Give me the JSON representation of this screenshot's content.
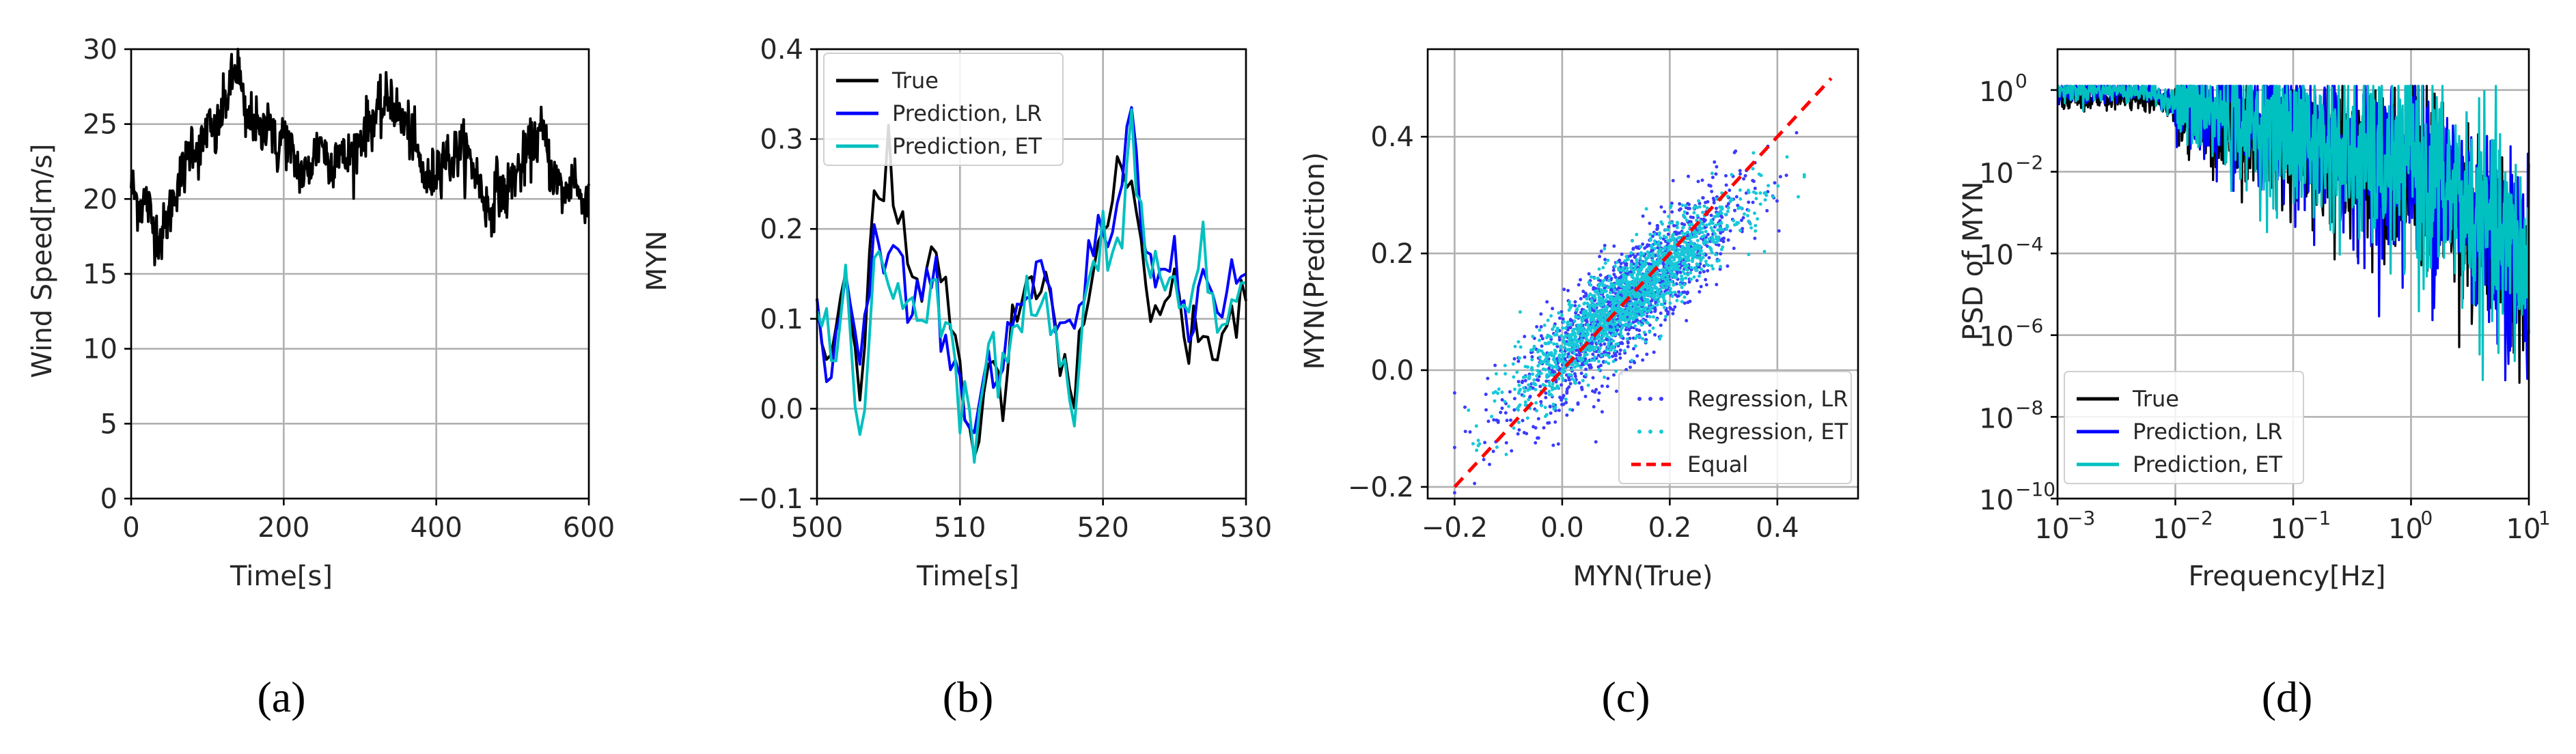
{
  "chart_data": [
    {
      "panel": "a",
      "type": "line",
      "caption": "(a)",
      "xlabel": "Time[s]",
      "ylabel": "Wind Speed[m/s]",
      "xlim": [
        0,
        600
      ],
      "ylim": [
        0,
        30
      ],
      "xticks": [
        "0",
        "200",
        "400",
        "600"
      ],
      "yticks": [
        "0",
        "5",
        "10",
        "15",
        "20",
        "25",
        "30"
      ],
      "grid": true,
      "series": [
        {
          "color": "#000000",
          "x": [
            0,
            10,
            20,
            30,
            40,
            50,
            60,
            70,
            80,
            90,
            100,
            110,
            120,
            130,
            140,
            150,
            160,
            170,
            180,
            190,
            200,
            210,
            220,
            230,
            240,
            250,
            260,
            270,
            280,
            290,
            300,
            310,
            320,
            330,
            340,
            350,
            360,
            370,
            380,
            390,
            400,
            410,
            420,
            430,
            440,
            450,
            460,
            470,
            480,
            490,
            500,
            510,
            520,
            530,
            540,
            550,
            560,
            570,
            580,
            590,
            600
          ],
          "values": [
            21,
            19.5,
            20,
            18,
            17.5,
            19,
            21,
            22,
            24,
            23,
            25,
            24,
            26,
            27.5,
            29,
            25,
            25.5,
            24,
            26,
            23,
            24.5,
            23,
            22,
            21.5,
            23,
            24,
            22,
            23.5,
            22.5,
            23,
            24,
            25,
            25.5,
            26,
            27,
            25.5,
            25,
            24,
            22,
            21,
            22,
            23,
            22.5,
            23.5,
            23,
            22,
            20.5,
            19,
            21,
            20,
            21.5,
            22,
            23,
            24,
            24.5,
            22,
            21,
            20,
            22,
            19.5,
            21
          ]
        }
      ]
    },
    {
      "panel": "b",
      "type": "line",
      "caption": "(b)",
      "xlabel": "Time[s]",
      "ylabel": "MYN",
      "xlim": [
        500,
        530
      ],
      "ylim": [
        -0.1,
        0.4
      ],
      "xticks": [
        "500",
        "510",
        "520",
        "530"
      ],
      "yticks": [
        "−0.1",
        "0.0",
        "0.1",
        "0.2",
        "0.3",
        "0.4"
      ],
      "grid": true,
      "legend": "top-left",
      "series": [
        {
          "name": "True",
          "color": "#000000",
          "x": [
            500,
            501,
            502,
            503,
            504,
            505,
            506,
            507,
            508,
            509,
            510,
            511,
            512,
            513,
            514,
            515,
            516,
            517,
            518,
            519,
            520,
            521,
            522,
            523,
            524,
            525,
            526,
            527,
            528,
            529,
            530
          ],
          "values": [
            0.1,
            0.05,
            0.17,
            0.02,
            0.22,
            0.25,
            0.2,
            0.12,
            0.19,
            0.13,
            0.05,
            -0.05,
            0.03,
            0.02,
            0.1,
            0.15,
            0.12,
            0.05,
            0.02,
            0.13,
            0.2,
            0.26,
            0.23,
            0.12,
            0.09,
            0.14,
            0.06,
            0.11,
            0.04,
            0.1,
            0.12
          ]
        },
        {
          "name": "Prediction, LR",
          "color": "#0000ff",
          "x": [
            500,
            501,
            502,
            503,
            504,
            505,
            506,
            507,
            508,
            509,
            510,
            511,
            512,
            513,
            514,
            515,
            516,
            517,
            518,
            519,
            520,
            521,
            522,
            523,
            524,
            525,
            526,
            527,
            528,
            529,
            530
          ],
          "values": [
            0.12,
            0.03,
            0.15,
            0.04,
            0.18,
            0.16,
            0.14,
            0.1,
            0.15,
            0.1,
            0.02,
            -0.02,
            0.06,
            0.05,
            0.12,
            0.13,
            0.14,
            0.08,
            0.07,
            0.16,
            0.21,
            0.18,
            0.34,
            0.15,
            0.16,
            0.18,
            0.12,
            0.17,
            0.1,
            0.14,
            0.15
          ]
        },
        {
          "name": "Prediction, ET",
          "color": "#00c0c0",
          "x": [
            500,
            501,
            502,
            503,
            504,
            505,
            506,
            507,
            508,
            509,
            510,
            511,
            512,
            513,
            514,
            515,
            516,
            517,
            518,
            519,
            520,
            521,
            522,
            523,
            524,
            525,
            526,
            527,
            528,
            529,
            530
          ],
          "values": [
            0.11,
            0.04,
            0.14,
            -0.04,
            0.17,
            0.15,
            0.13,
            0.11,
            0.14,
            0.09,
            0.03,
            -0.03,
            0.05,
            0.04,
            0.11,
            0.12,
            0.13,
            0.07,
            -0.02,
            0.15,
            0.2,
            0.17,
            0.33,
            0.14,
            0.15,
            0.17,
            0.11,
            0.16,
            0.09,
            0.13,
            0.14
          ]
        }
      ]
    },
    {
      "panel": "c",
      "type": "scatter",
      "caption": "(c)",
      "xlabel": "MYN(True)",
      "ylabel": "MYN(Prediction)",
      "xlim": [
        -0.25,
        0.55
      ],
      "ylim": [
        -0.22,
        0.55
      ],
      "xticks": [
        "−0.2",
        "0.0",
        "0.2",
        "0.4"
      ],
      "yticks": [
        "−0.2",
        "0.0",
        "0.2",
        "0.4"
      ],
      "grid": true,
      "legend": "bottom-right",
      "series": [
        {
          "name": "Regression, LR",
          "color": "#3b3bff",
          "marker": "point",
          "slope": 0.8,
          "intercept": 0.02,
          "x_range": [
            -0.2,
            0.45
          ],
          "spread": 0.08
        },
        {
          "name": "Regression, ET",
          "color": "#17c8d8",
          "marker": "point",
          "slope": 0.75,
          "intercept": 0.03,
          "x_range": [
            -0.2,
            0.45
          ],
          "spread": 0.06
        },
        {
          "name": "Equal",
          "color": "#ff0000",
          "style": "dashed",
          "x": [
            -0.2,
            0.5
          ],
          "values": [
            -0.2,
            0.5
          ]
        }
      ]
    },
    {
      "panel": "d",
      "type": "line",
      "caption": "(d)",
      "xlabel": "Frequency[Hz]",
      "ylabel": "PSD of MYN",
      "xscale": "log",
      "yscale": "log",
      "xlim": [
        0.001,
        10
      ],
      "ylim": [
        1e-10,
        10
      ],
      "xticks": [
        "10",
        "10",
        "10",
        "10",
        "10"
      ],
      "xtick_exps": [
        "−3",
        "−2",
        "−1",
        "0",
        "1"
      ],
      "yticks": [
        "10",
        "10",
        "10",
        "10",
        "10",
        "10"
      ],
      "ytick_exps": [
        "−10",
        "−8",
        "−6",
        "−4",
        "−2",
        "0"
      ],
      "grid": true,
      "legend": "bottom-left",
      "series": [
        {
          "name": "True",
          "color": "#000000"
        },
        {
          "name": "Prediction, LR",
          "color": "#0000ff"
        },
        {
          "name": "Prediction, ET",
          "color": "#00c0c0"
        }
      ]
    }
  ]
}
